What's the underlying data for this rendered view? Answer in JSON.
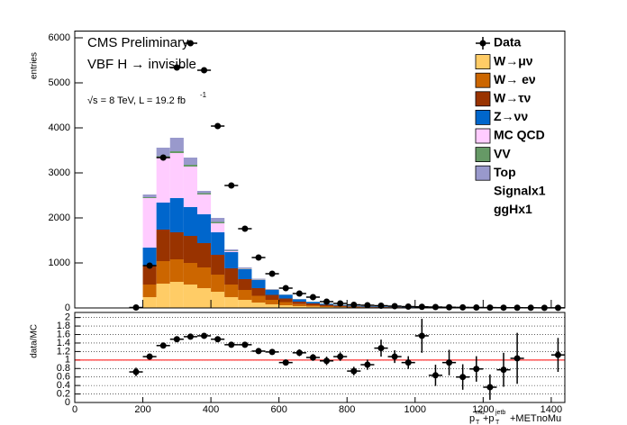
{
  "chart_data": {
    "type": "histogram",
    "annotations": [
      "CMS Preliminary",
      "VBF H → invisible",
      "√s = 8 TeV, L = 19.2 fb",
      "-1"
    ],
    "ylabel": "entries",
    "xlabel": [
      "p",
      "mu",
      "T",
      "+p",
      "jetb",
      "T",
      "+METnoMu"
    ],
    "xlim": [
      0,
      1440
    ],
    "xticks": [
      0,
      200,
      400,
      600,
      800,
      1000,
      1200,
      1400
    ],
    "ylim": [
      0,
      6150
    ],
    "yticks": [
      0,
      1000,
      2000,
      3000,
      4000,
      5000,
      6000
    ],
    "bins": [
      200,
      240,
      280,
      320,
      360,
      400,
      440,
      480,
      520,
      560,
      600,
      640,
      680,
      720,
      760,
      800,
      840,
      880,
      920,
      960,
      1000
    ],
    "series": [
      {
        "name": "W→μν",
        "color": "#ffcc66",
        "values": [
          240,
          540,
          580,
          520,
          440,
          360,
          240,
          180,
          120,
          80,
          60,
          40,
          30,
          20,
          15,
          10,
          8,
          6,
          5,
          4
        ]
      },
      {
        "name": "W→ eν",
        "color": "#cc6600",
        "values": [
          280,
          500,
          500,
          480,
          460,
          380,
          280,
          220,
          150,
          100,
          70,
          45,
          30,
          20,
          15,
          10,
          8,
          6,
          5,
          4
        ]
      },
      {
        "name": "W→τν",
        "color": "#993300",
        "values": [
          420,
          700,
          600,
          600,
          540,
          440,
          360,
          240,
          170,
          110,
          80,
          55,
          40,
          30,
          20,
          15,
          12,
          10,
          8,
          6
        ]
      },
      {
        "name": "Z→νν",
        "color": "#0066cc",
        "values": [
          400,
          600,
          760,
          640,
          640,
          500,
          360,
          220,
          180,
          110,
          80,
          50,
          35,
          25,
          17,
          14,
          12,
          10,
          8,
          6
        ]
      },
      {
        "name": "MC QCD",
        "color": "#ffccff",
        "values": [
          1100,
          1000,
          1000,
          900,
          440,
          200,
          20,
          10,
          5,
          5,
          0,
          0,
          0,
          0,
          0,
          0,
          0,
          0,
          0,
          0
        ]
      },
      {
        "name": "VV",
        "color": "#669966",
        "values": [
          20,
          30,
          40,
          40,
          30,
          30,
          10,
          10,
          5,
          5,
          5,
          5,
          3,
          3,
          2,
          1,
          1,
          1,
          1,
          1
        ]
      },
      {
        "name": "Top",
        "color": "#9999cc",
        "values": [
          60,
          190,
          300,
          160,
          50,
          90,
          30,
          20,
          20,
          10,
          5,
          5,
          2,
          2,
          1,
          1,
          1,
          1,
          1,
          1
        ]
      }
    ],
    "legend_extra": [
      "Signalx1",
      "ggHx1"
    ],
    "data": {
      "name": "Data",
      "color": "#000000",
      "xerr": 20,
      "x": [
        180,
        220,
        260,
        300,
        340,
        380,
        420,
        460,
        500,
        540,
        580,
        620,
        660,
        700,
        740,
        780,
        820,
        860,
        900,
        940,
        980,
        1020,
        1060,
        1100,
        1140,
        1180,
        1220,
        1260,
        1300,
        1340,
        1380,
        1420
      ],
      "values": [
        10,
        940,
        3340,
        5340,
        5880,
        5280,
        4040,
        2720,
        1760,
        1120,
        760,
        440,
        320,
        240,
        140,
        100,
        70,
        60,
        50,
        40,
        30,
        25,
        20,
        15,
        12,
        10,
        8,
        6,
        5,
        4,
        3,
        3
      ]
    },
    "ratio": {
      "ylabel": "data/MC",
      "ylim": [
        0,
        2.12
      ],
      "yticks": [
        0,
        0.2,
        0.4,
        0.6,
        0.8,
        1,
        1.2,
        1.4,
        1.6,
        1.8,
        2
      ],
      "reference": 1,
      "reference_color": "#ff0000",
      "x": [
        180,
        220,
        260,
        300,
        340,
        380,
        420,
        460,
        500,
        540,
        580,
        620,
        660,
        700,
        740,
        780,
        820,
        860,
        900,
        940,
        980,
        1020,
        1060,
        1100,
        1140,
        1180,
        1220,
        1260,
        1300,
        1420
      ],
      "values": [
        0.72,
        1.08,
        1.34,
        1.49,
        1.55,
        1.57,
        1.49,
        1.36,
        1.36,
        1.21,
        1.19,
        0.94,
        1.17,
        1.06,
        0.98,
        1.08,
        0.74,
        0.89,
        1.28,
        1.08,
        0.94,
        1.57,
        0.64,
        0.94,
        0.6,
        0.79,
        0.36,
        0.77,
        1.04,
        1.12
      ],
      "errors": [
        0.1,
        0.05,
        0.04,
        0.04,
        0.04,
        0.04,
        0.04,
        0.04,
        0.05,
        0.05,
        0.06,
        0.07,
        0.08,
        0.08,
        0.1,
        0.1,
        0.1,
        0.12,
        0.2,
        0.15,
        0.15,
        0.4,
        0.25,
        0.3,
        0.3,
        0.3,
        0.3,
        0.4,
        0.6,
        0.4
      ]
    }
  }
}
